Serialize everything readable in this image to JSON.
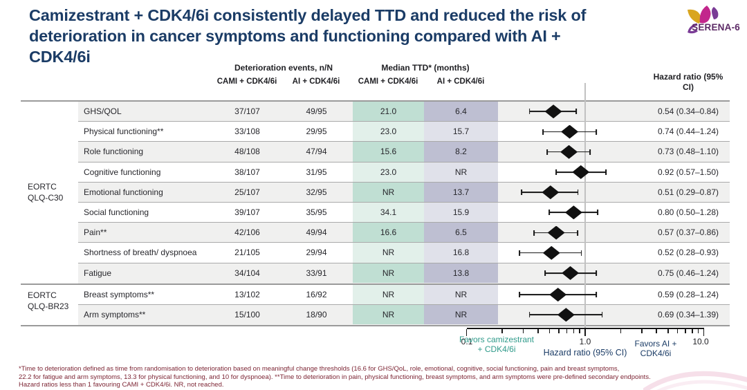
{
  "header": {
    "title": "Camizestrant + CDK4/6i consistently delayed TTD and reduced the risk of deterioration in cancer symptoms and functioning compared with AI + CDK4/6i",
    "title_lines": [
      "Camizestrant + CDK4/6i consistently delayed TTD and reduced the risk of",
      "deterioration in cancer symptoms and functioning compared with AI +",
      "CDK4/6i"
    ],
    "logo_text": "SERENA-6"
  },
  "table": {
    "headers": {
      "events": "Deterioration events, n/N",
      "median": "Median TTD* (months)",
      "hazard_ratio": "Hazard ratio (95% CI)"
    },
    "subheaders": {
      "cami": "CAMI + CDK4/6i",
      "ai": "AI + CDK4/6i"
    },
    "groups": [
      {
        "line1": "EORTC",
        "line2": "QLQ-C30"
      },
      {
        "line1": "EORTC",
        "line2": "QLQ-BR23"
      }
    ],
    "rows": [
      {
        "group": "EORTC QLQ-C30",
        "label": "GHS/QOL",
        "ev_cami": "37/107",
        "ev_ai": "49/95",
        "med_cami": "21.0",
        "med_ai": "6.4",
        "hr": 0.54,
        "lo": 0.34,
        "hi": 0.84,
        "hr_text": "0.54 (0.34–0.84)"
      },
      {
        "group": "EORTC QLQ-C30",
        "label": "Physical functioning**",
        "ev_cami": "33/108",
        "ev_ai": "29/95",
        "med_cami": "23.0",
        "med_ai": "15.7",
        "hr": 0.74,
        "lo": 0.44,
        "hi": 1.24,
        "hr_text": "0.74 (0.44–1.24)"
      },
      {
        "group": "EORTC QLQ-C30",
        "label": "Role functioning",
        "ev_cami": "48/108",
        "ev_ai": "47/94",
        "med_cami": "15.6",
        "med_ai": "8.2",
        "hr": 0.73,
        "lo": 0.48,
        "hi": 1.1,
        "hr_text": "0.73 (0.48–1.10)"
      },
      {
        "group": "EORTC QLQ-C30",
        "label": "Cognitive functioning",
        "ev_cami": "38/107",
        "ev_ai": "31/95",
        "med_cami": "23.0",
        "med_ai": "NR",
        "hr": 0.92,
        "lo": 0.57,
        "hi": 1.5,
        "hr_text": "0.92 (0.57–1.50)"
      },
      {
        "group": "EORTC QLQ-C30",
        "label": "Emotional functioning",
        "ev_cami": "25/107",
        "ev_ai": "32/95",
        "med_cami": "NR",
        "med_ai": "13.7",
        "hr": 0.51,
        "lo": 0.29,
        "hi": 0.87,
        "hr_text": "0.51 (0.29–0.87)"
      },
      {
        "group": "EORTC QLQ-C30",
        "label": "Social functioning",
        "ev_cami": "39/107",
        "ev_ai": "35/95",
        "med_cami": "34.1",
        "med_ai": "15.9",
        "hr": 0.8,
        "lo": 0.5,
        "hi": 1.28,
        "hr_text": "0.80 (0.50–1.28)"
      },
      {
        "group": "EORTC QLQ-C30",
        "label": "Pain**",
        "ev_cami": "42/106",
        "ev_ai": "49/94",
        "med_cami": "16.6",
        "med_ai": "6.5",
        "hr": 0.57,
        "lo": 0.37,
        "hi": 0.86,
        "hr_text": "0.57 (0.37–0.86)"
      },
      {
        "group": "EORTC QLQ-C30",
        "label": "Shortness of breath/ dyspnoea",
        "ev_cami": "21/105",
        "ev_ai": "29/94",
        "med_cami": "NR",
        "med_ai": "16.8",
        "hr": 0.52,
        "lo": 0.28,
        "hi": 0.93,
        "hr_text": "0.52 (0.28–0.93)"
      },
      {
        "group": "EORTC QLQ-C30",
        "label": "Fatigue",
        "ev_cami": "34/104",
        "ev_ai": "33/91",
        "med_cami": "NR",
        "med_ai": "13.8",
        "hr": 0.75,
        "lo": 0.46,
        "hi": 1.24,
        "hr_text": "0.75 (0.46–1.24)"
      },
      {
        "group": "EORTC QLQ-BR23",
        "label": "Breast symptoms**",
        "ev_cami": "13/102",
        "ev_ai": "16/92",
        "med_cami": "NR",
        "med_ai": "NR",
        "hr": 0.59,
        "lo": 0.28,
        "hi": 1.24,
        "hr_text": "0.59 (0.28–1.24)"
      },
      {
        "group": "EORTC QLQ-BR23",
        "label": "Arm symptoms**",
        "ev_cami": "15/100",
        "ev_ai": "18/90",
        "med_cami": "NR",
        "med_ai": "NR",
        "hr": 0.69,
        "lo": 0.34,
        "hi": 1.39,
        "hr_text": "0.69 (0.34–1.39)"
      }
    ]
  },
  "axis": {
    "tick_labels": [
      "0.1",
      "1.0",
      "10.0"
    ],
    "xlabel": "Hazard ratio (95% CI)",
    "favors_left": "Favors camizestrant + CDK4/6i",
    "favors_right": "Favors AI + CDK4/6i"
  },
  "footnotes": [
    "*Time to deterioration defined as time from randomisation to deterioration based on meaningful change thresholds (16.6 for GHS/QoL, role, emotional, cognitive, social functioning, pain and breast symptoms,",
    "22.2 for fatigue and arm symptoms, 13.3 for physical functioning, and 10 for dyspnoea). **Time to deterioration in pain, physical functioning, breast symptoms, and arm symptoms were pre-defined secondary endpoints.",
    "Hazard ratios less than 1 favouring CAMI + CDK4/6i. NR, not reached."
  ],
  "colors": {
    "title_navy": "#1b3c66",
    "favors_teal": "#2f9a8a",
    "footnote_red": "#7c2433",
    "stripe_gray": "#f0f0ef",
    "cami_cell_dark": "#c0dfd3",
    "cami_cell_light": "#e2f0ea",
    "ai_cell_dark": "#bebfd2",
    "ai_cell_light": "#e0e1ea",
    "marker_black": "#111111",
    "logo_gold": "#d9a520",
    "logo_magenta": "#c2268c",
    "logo_purple": "#7a3b96",
    "logo_text_plum": "#5c2a66"
  },
  "chart_data": {
    "type": "scatter",
    "subtype": "forest-plot",
    "orientation": "horizontal",
    "x_scale": "log",
    "xlim": [
      0.1,
      10.0
    ],
    "x_ticks": [
      0.1,
      1.0,
      10.0
    ],
    "xlabel": "Hazard ratio (95% CI)",
    "reference_line": 1.0,
    "categories": [
      "GHS/QOL",
      "Physical functioning**",
      "Role functioning",
      "Cognitive functioning",
      "Emotional functioning",
      "Social functioning",
      "Pain**",
      "Shortness of breath/ dyspnoea",
      "Fatigue",
      "Breast symptoms**",
      "Arm symptoms**"
    ],
    "series": [
      {
        "name": "Hazard ratio (95% CI)",
        "values": [
          0.54,
          0.74,
          0.73,
          0.92,
          0.51,
          0.8,
          0.57,
          0.52,
          0.75,
          0.59,
          0.69
        ],
        "ci_low": [
          0.34,
          0.44,
          0.48,
          0.57,
          0.29,
          0.5,
          0.37,
          0.28,
          0.46,
          0.28,
          0.34
        ],
        "ci_high": [
          0.84,
          1.24,
          1.1,
          1.5,
          0.87,
          1.28,
          0.86,
          0.93,
          1.24,
          1.24,
          1.39
        ]
      }
    ],
    "annotations": [
      "Favors camizestrant + CDK4/6i",
      "Favors AI + CDK4/6i"
    ],
    "grid": false,
    "legend": false
  }
}
